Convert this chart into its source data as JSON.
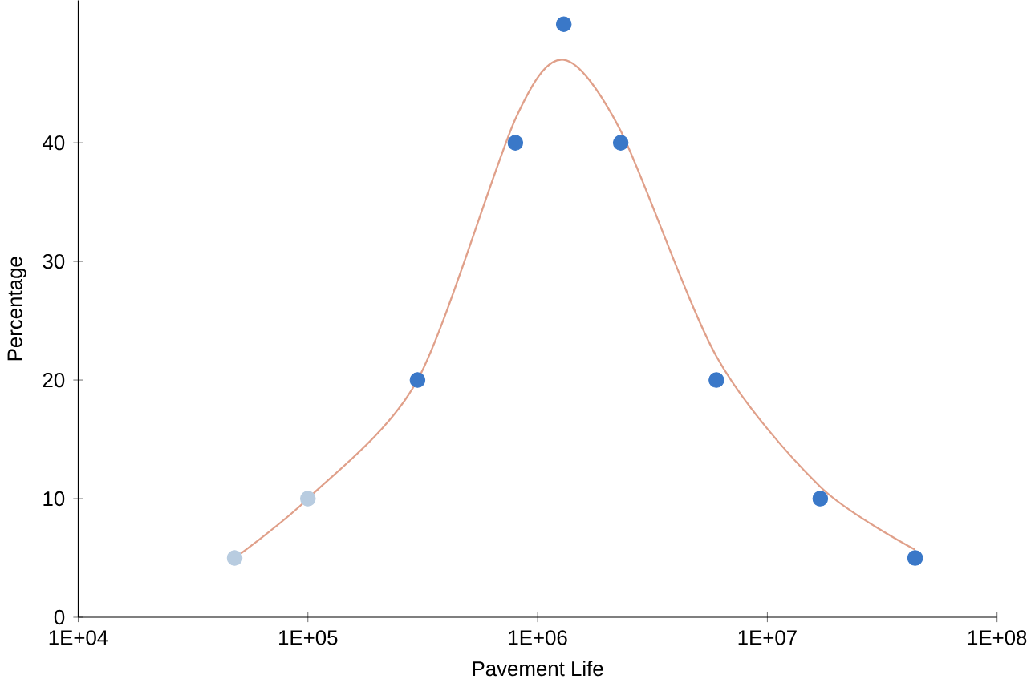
{
  "chart_data": {
    "type": "scatter",
    "xlabel": "Pavement Life",
    "ylabel": "Percentage",
    "log": "x",
    "grid": false,
    "marker": "circle",
    "xlim": [
      10000,
      100000000
    ],
    "xticks": [
      {
        "value": 10000,
        "label": "1E+04"
      },
      {
        "value": 100000,
        "label": "1E+05"
      },
      {
        "value": 1000000,
        "label": "1E+06"
      },
      {
        "value": 10000000,
        "label": "1E+07"
      },
      {
        "value": 100000000,
        "label": "1E+08"
      }
    ],
    "ylim": [
      0,
      52
    ],
    "yticks": [
      0,
      10,
      20,
      30,
      40
    ],
    "series": [
      {
        "type": "line",
        "color": "#e0a08a",
        "marker": "none",
        "x": [
          48000,
          100000,
          300000,
          800000,
          1300000,
          2300000,
          6000000,
          17000000,
          44000000
        ],
        "values": [
          5,
          10,
          20,
          42,
          47,
          41,
          22,
          11,
          5.7
        ]
      },
      {
        "color": "#b8cce0",
        "x": [
          48000,
          100000
        ],
        "values": [
          5,
          10
        ]
      },
      {
        "color": "#3a78c8",
        "x": [
          300000,
          800000,
          1300000,
          2300000,
          6000000,
          17000000,
          44000000
        ],
        "values": [
          20,
          40,
          50,
          40,
          20,
          10,
          5
        ]
      }
    ]
  }
}
